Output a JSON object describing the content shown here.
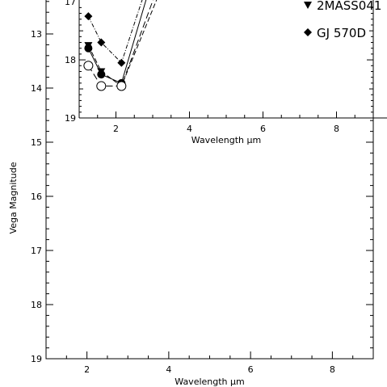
{
  "chart_data": [
    {
      "type": "line",
      "title": "",
      "xlabel": "Wavelength μm",
      "ylabel": "Vega Magnitude",
      "xlim": [
        1,
        9
      ],
      "ylim": [
        19,
        12
      ],
      "x_ticks": [
        "2",
        "4",
        "6",
        "8"
      ],
      "y_ticks": [
        "13",
        "14",
        "15",
        "16",
        "17",
        "18",
        "19"
      ],
      "series": []
    },
    {
      "type": "line",
      "title": "",
      "xlabel": "Wavelength μm",
      "ylabel": "",
      "xlim": [
        1,
        9
      ],
      "ylim": [
        19,
        16.9
      ],
      "x_ticks": [
        "2",
        "4",
        "6",
        "8"
      ],
      "y_ticks": [
        "17",
        "18",
        "19"
      ],
      "legend": {
        "position": "top-right"
      },
      "series": [
        {
          "name": "GJ 570D",
          "marker": "diamond",
          "style": "dash-dot",
          "x": [
            1.25,
            1.6,
            2.15
          ],
          "y": [
            17.25,
            17.7,
            18.05
          ]
        },
        {
          "name": "2MASS041",
          "marker": "triangle-down",
          "style": "dashed",
          "x": [
            1.25,
            1.6,
            2.15
          ],
          "y": [
            17.75,
            18.2,
            18.45
          ]
        },
        {
          "name": "",
          "marker": "filled-circle",
          "style": "solid",
          "x": [
            1.25,
            1.6,
            2.15
          ],
          "y": [
            17.8,
            18.25,
            18.4
          ]
        },
        {
          "name": "",
          "marker": "open-circle",
          "style": "long-dash",
          "x": [
            1.25,
            1.6,
            2.15
          ],
          "y": [
            18.1,
            18.45,
            18.45
          ]
        }
      ]
    }
  ]
}
